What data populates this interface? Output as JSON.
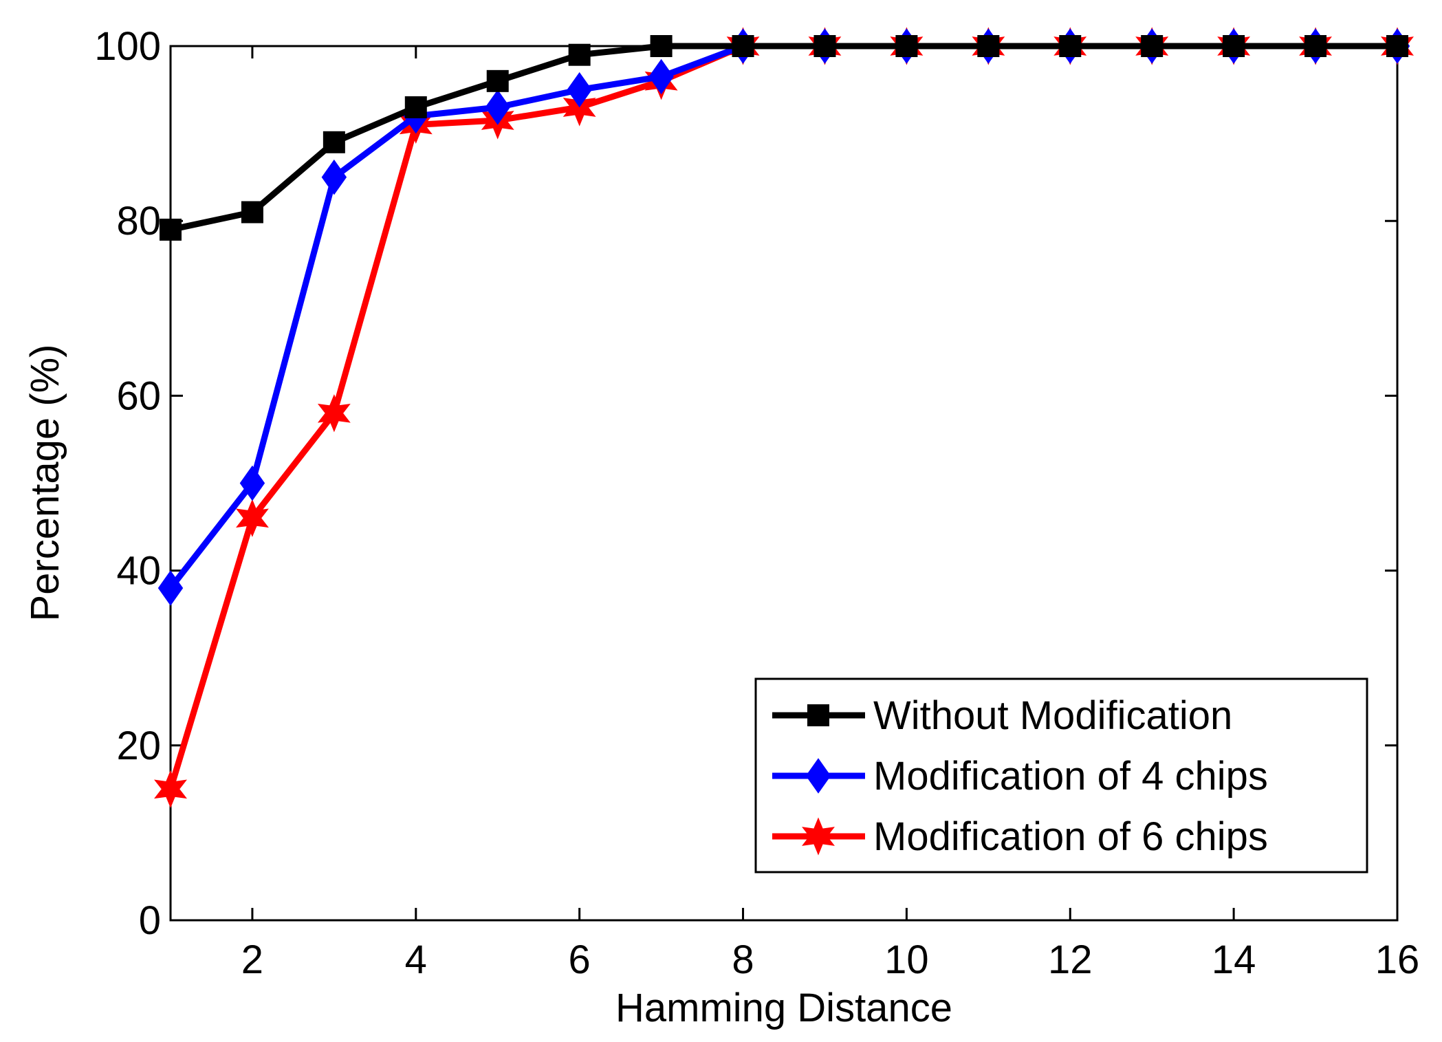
{
  "chart_data": {
    "type": "line",
    "title": "",
    "xlabel": "Hamming Distance",
    "ylabel": "Percentage (%)",
    "xlim": [
      1,
      16
    ],
    "ylim": [
      0,
      100
    ],
    "xticks": [
      2,
      4,
      6,
      8,
      10,
      12,
      14,
      16
    ],
    "yticks": [
      0,
      20,
      40,
      60,
      80,
      100
    ],
    "grid": false,
    "legend_position": "bottom-right",
    "x": [
      1,
      2,
      3,
      4,
      5,
      6,
      7,
      8,
      9,
      10,
      11,
      12,
      13,
      14,
      15,
      16
    ],
    "series": [
      {
        "name": "Without Modification",
        "color": "#000000",
        "marker": "square",
        "values": [
          79,
          81,
          89,
          93,
          96,
          99,
          100,
          100,
          100,
          100,
          100,
          100,
          100,
          100,
          100,
          100
        ]
      },
      {
        "name": "Modification of 4 chips",
        "color": "#0000ff",
        "marker": "diamond",
        "values": [
          38,
          50,
          85,
          92,
          93,
          95,
          96.5,
          100,
          100,
          100,
          100,
          100,
          100,
          100,
          100,
          100
        ]
      },
      {
        "name": "Modification of 6 chips",
        "color": "#ff0000",
        "marker": "star",
        "values": [
          15,
          46,
          58,
          91,
          91.5,
          93,
          96,
          100,
          100,
          100,
          100,
          100,
          100,
          100,
          100,
          100
        ]
      }
    ]
  }
}
